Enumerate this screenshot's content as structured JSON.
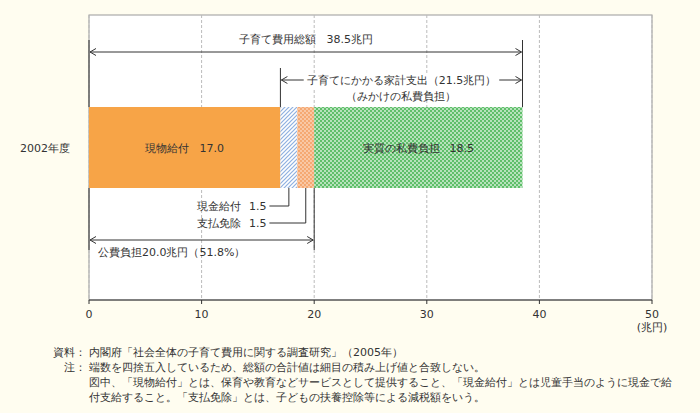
{
  "chart_data": {
    "type": "bar",
    "orientation": "horizontal",
    "stacked": true,
    "data_labels": true,
    "grid": true,
    "categories": [
      "2002年度"
    ],
    "series": [
      {
        "name": "現物給付",
        "color": "#f7a447",
        "values": [
          17.0
        ],
        "value_labels": [
          "17.0"
        ]
      },
      {
        "name": "現金給付",
        "color": "#8fb0e0",
        "values": [
          1.5
        ],
        "value_labels": [
          "1.5"
        ]
      },
      {
        "name": "支払免除",
        "color": "#f39a5a",
        "values": [
          1.5
        ],
        "value_labels": [
          "1.5"
        ]
      },
      {
        "name": "実質の私費負担",
        "color": "#5fbf6a",
        "values": [
          18.5
        ],
        "value_labels": [
          "18.5"
        ]
      }
    ],
    "xlim": [
      0,
      50
    ],
    "xticks": [
      0,
      10,
      20,
      30,
      40,
      50
    ],
    "x_label": "(兆円)",
    "annotations": [
      {
        "label": "子育て費用総額　38.5兆円",
        "start": 0,
        "end": 38.5
      },
      {
        "label": "子育てにかかる家計支出（21.5兆円）",
        "sublabel": "（みかけの私費負担）",
        "start": 17,
        "end": 38.5
      },
      {
        "label": "公費負担20.0兆円（51.8%）",
        "start": 0,
        "end": 20
      }
    ],
    "source_label": "資料：",
    "source": "内閣府「社会全体の子育て費用に関する調査研究」（2005年）",
    "note_label": "注：",
    "notes": [
      "端数を四捨五入しているため、総額の合計値は細目の積み上げ値と合致しない。",
      "図中、「現物給付」とは、保育や教育などサービスとして提供すること、「現金給付」とは児童手当のように現金で給",
      "付支給すること。「支払免除」とは、子どもの扶養控除等による減税額をいう。"
    ]
  }
}
